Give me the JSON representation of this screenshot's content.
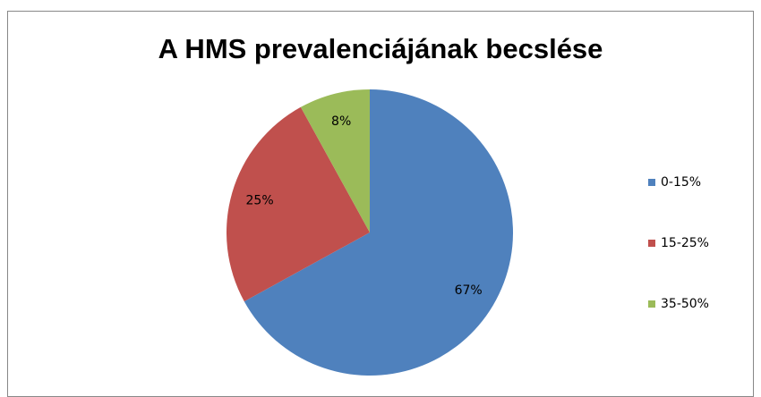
{
  "chart_data": {
    "type": "pie",
    "title": "A HMS prevalenciájának becslése",
    "categories": [
      "0-15%",
      "15-25%",
      "35-50%"
    ],
    "values": [
      67,
      25,
      8
    ],
    "value_labels": [
      "67%",
      "25%",
      "8%"
    ],
    "colors": [
      "#4f81bd",
      "#c0504d",
      "#9bbb59"
    ],
    "legend": "right"
  }
}
